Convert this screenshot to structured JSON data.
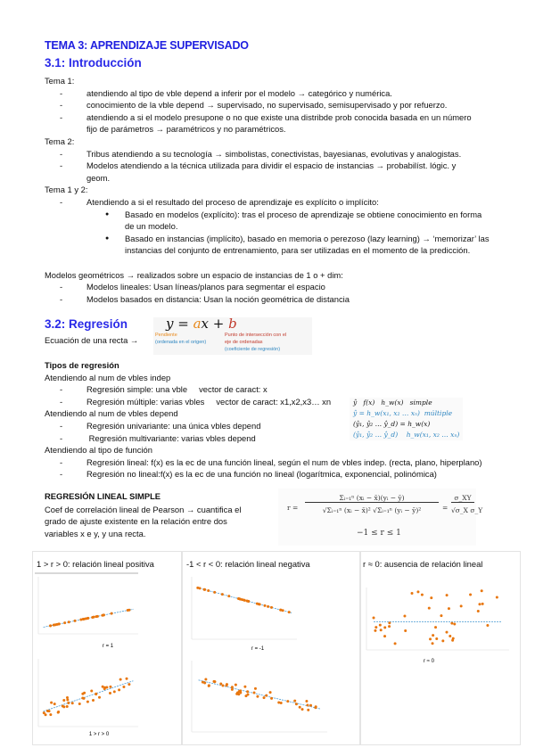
{
  "title": "TEMA 3: APRENDIZAJE SUPERVISADO",
  "section1": {
    "heading": "3.1: Introducción",
    "tema1": {
      "label": "Tema 1:",
      "items": [
        "atendiendo al  tipo de vble depend a inferir por el modelo → categórico y numérica.",
        "conocimiento de la vble depend → supervisado, no supervisado, semisupervisado y por refuerzo.",
        "atendiendo a si el modelo presupone o no que existe una distribde prob conocida basada en un número",
        "fijo de parámetros → paramétricos y no paramétricos."
      ]
    },
    "tema2": {
      "label": "Tema 2:",
      "items": [
        "Tribus atendiendo a su tecnología →  simbolistas, conectivistas, bayesianas, evolutivas y analogistas.",
        "Modelos atendiendo a la técnica utilizada para dividir el espacio de instancias → probabilíst. lógic. y",
        "geom."
      ]
    },
    "tema12": {
      "label": "Tema 1 y 2:",
      "item": "Atendiendo a si el resultado del proceso de aprendizaje es explícito o implícito:",
      "bullets": [
        "Basado en modelos (explícito): tras el proceso de aprendizaje se obtiene conocimiento en forma",
        "de un modelo.",
        "Basado en instancias (implícito), basado en memoria o perezoso (lazy learning) →  ‘memorizar’ las",
        "instancias del conjunto de entrenamiento, para ser utilizadas en el momento de la predicción."
      ]
    },
    "geom": {
      "label": "Modelos geométricos → realizados sobre un espacio de instancias de 1 o + dim:",
      "items": [
        "Modelos lineales: Usan líneas/planos para segmentar el espacio",
        "Modelos basados en distancia: Usan la noción geométrica de distancia"
      ]
    }
  },
  "section2": {
    "heading": "3.2: Regresión",
    "recta_label": "Ecuación de una recta →",
    "equation": {
      "y": "y = ",
      "a": "a",
      "x": "x + ",
      "b": "b",
      "pendiente": "Pendiente",
      "pendiente_sub": "(ordenada en el origen)",
      "punto": "Punto de intersección con el",
      "punto2": "eje de ordenadas",
      "punto3": "(coeficiente de regresión)"
    },
    "tipos_heading": "Tipos de regresión",
    "indep_label": "Atendiendo al num de vbles indep",
    "indep_items": [
      "Regresión simple: una vble     vector de caract: x",
      "Regresión múltiple: varias vbles     vector de caract: x1,x2,x3… xn"
    ],
    "dep_label": "Atendiendo al num de vbles depend",
    "dep_items": [
      "Regresión univariante: una única vbles depend",
      " Regresión multivariante: varias vbles depend"
    ],
    "func_label": "Atendiendo al tipo de función",
    "func_items": [
      "Regresión lineal: f(x) es la ec de una función lineal, según el num de vbles indep. (recta, plano, hiperplano)",
      "Regresión no lineal:f(x) es la ec de una función no lineal (logarítmica, exponencial, polinómica)"
    ],
    "formulas": [
      "ŷ   f(x)   h_w(x)   simple",
      "ŷ = h_w(x₁, x₂ … xₙ)  múltiple",
      "(ŷ₁, ŷ₂ … ŷ_d) = h_w(x)",
      "(ŷ₁, ŷ₂ … ŷ_d)    h_w(x₁, x₂ … xₙ)"
    ],
    "rls_heading": "REGRESIÓN LINEAL SIMPLE",
    "rls_text": [
      "Coef de correlación lineal de Pearson  → cuantifica el",
      "grado de ajuste existente en la relación entre dos",
      "variables x e y, y una recta."
    ],
    "pearson": {
      "lhs": "r =",
      "num": "Σᵢ₌₁ⁿ (xᵢ − x̄)(yᵢ − ȳ)",
      "den": "√Σᵢ₌₁ⁿ (xᵢ − x̄)² √Σᵢ₌₁ⁿ (yᵢ − ȳ)²",
      "num2": "σ_XY",
      "den2": "√σ_X σ_Y",
      "range": "−1 ≤ r ≤ 1"
    }
  },
  "panels": [
    {
      "title": "1 > r > 0: relación lineal positiva",
      "captions": [
        "r = 1",
        "1 > r > 0"
      ]
    },
    {
      "title": "-1 < r < 0: relación lineal negativa",
      "captions": [
        "r = -1",
        ""
      ]
    },
    {
      "title": "r ≈ 0: ausencia de relación lineal",
      "captions": [
        "r ≈ 0"
      ]
    }
  ],
  "colors": {
    "heading": "#2a2ae8",
    "points": "#e8760e",
    "trend": "#4a9bd4",
    "orange": "#e8891c",
    "red": "#c0392b",
    "blue": "#2e86c1"
  }
}
